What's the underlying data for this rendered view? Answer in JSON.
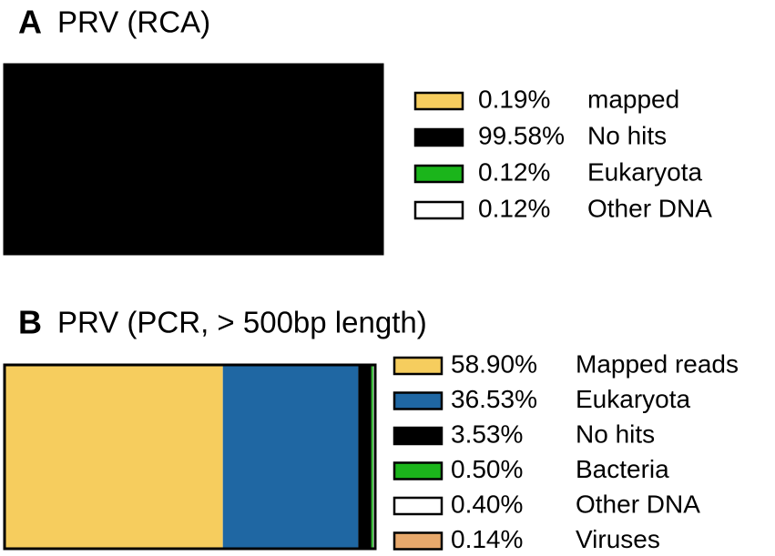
{
  "chart_data": [
    {
      "type": "stacked-bar",
      "panel": "A",
      "title": "PRV (RCA)",
      "xlim": [
        0,
        100
      ],
      "series": [
        {
          "name": "mapped",
          "color": "#f6cd5e",
          "values": [
            0.19
          ],
          "value_labels": [
            "0.19%"
          ]
        },
        {
          "name": "No hits",
          "color": "#000000",
          "values": [
            99.58
          ],
          "value_labels": [
            "99.58%"
          ]
        },
        {
          "name": "Eukaryota",
          "color": "#1bb51b",
          "values": [
            0.12
          ],
          "value_labels": [
            "0.12%"
          ]
        },
        {
          "name": "Other DNA",
          "color": "#ffffff",
          "values": [
            0.12
          ],
          "value_labels": [
            "0.12%"
          ]
        }
      ]
    },
    {
      "type": "stacked-bar",
      "panel": "B",
      "title": "PRV (PCR, > 500bp length)",
      "xlim": [
        0,
        100
      ],
      "series": [
        {
          "name": "Mapped reads",
          "color": "#f6cd5e",
          "values": [
            58.9
          ],
          "value_labels": [
            "58.90%"
          ]
        },
        {
          "name": "Eukaryota",
          "color": "#1f67a3",
          "values": [
            36.53
          ],
          "value_labels": [
            "36.53%"
          ]
        },
        {
          "name": "No hits",
          "color": "#000000",
          "values": [
            3.53
          ],
          "value_labels": [
            "3.53%"
          ]
        },
        {
          "name": "Bacteria",
          "color": "#1bb51b",
          "values": [
            0.5
          ],
          "value_labels": [
            "0.50%"
          ]
        },
        {
          "name": "Other DNA",
          "color": "#ffffff",
          "values": [
            0.4
          ],
          "value_labels": [
            "0.40%"
          ]
        },
        {
          "name": "Viruses",
          "color": "#e8a96c",
          "values": [
            0.14
          ],
          "value_labels": [
            "0.14%"
          ]
        }
      ]
    }
  ]
}
